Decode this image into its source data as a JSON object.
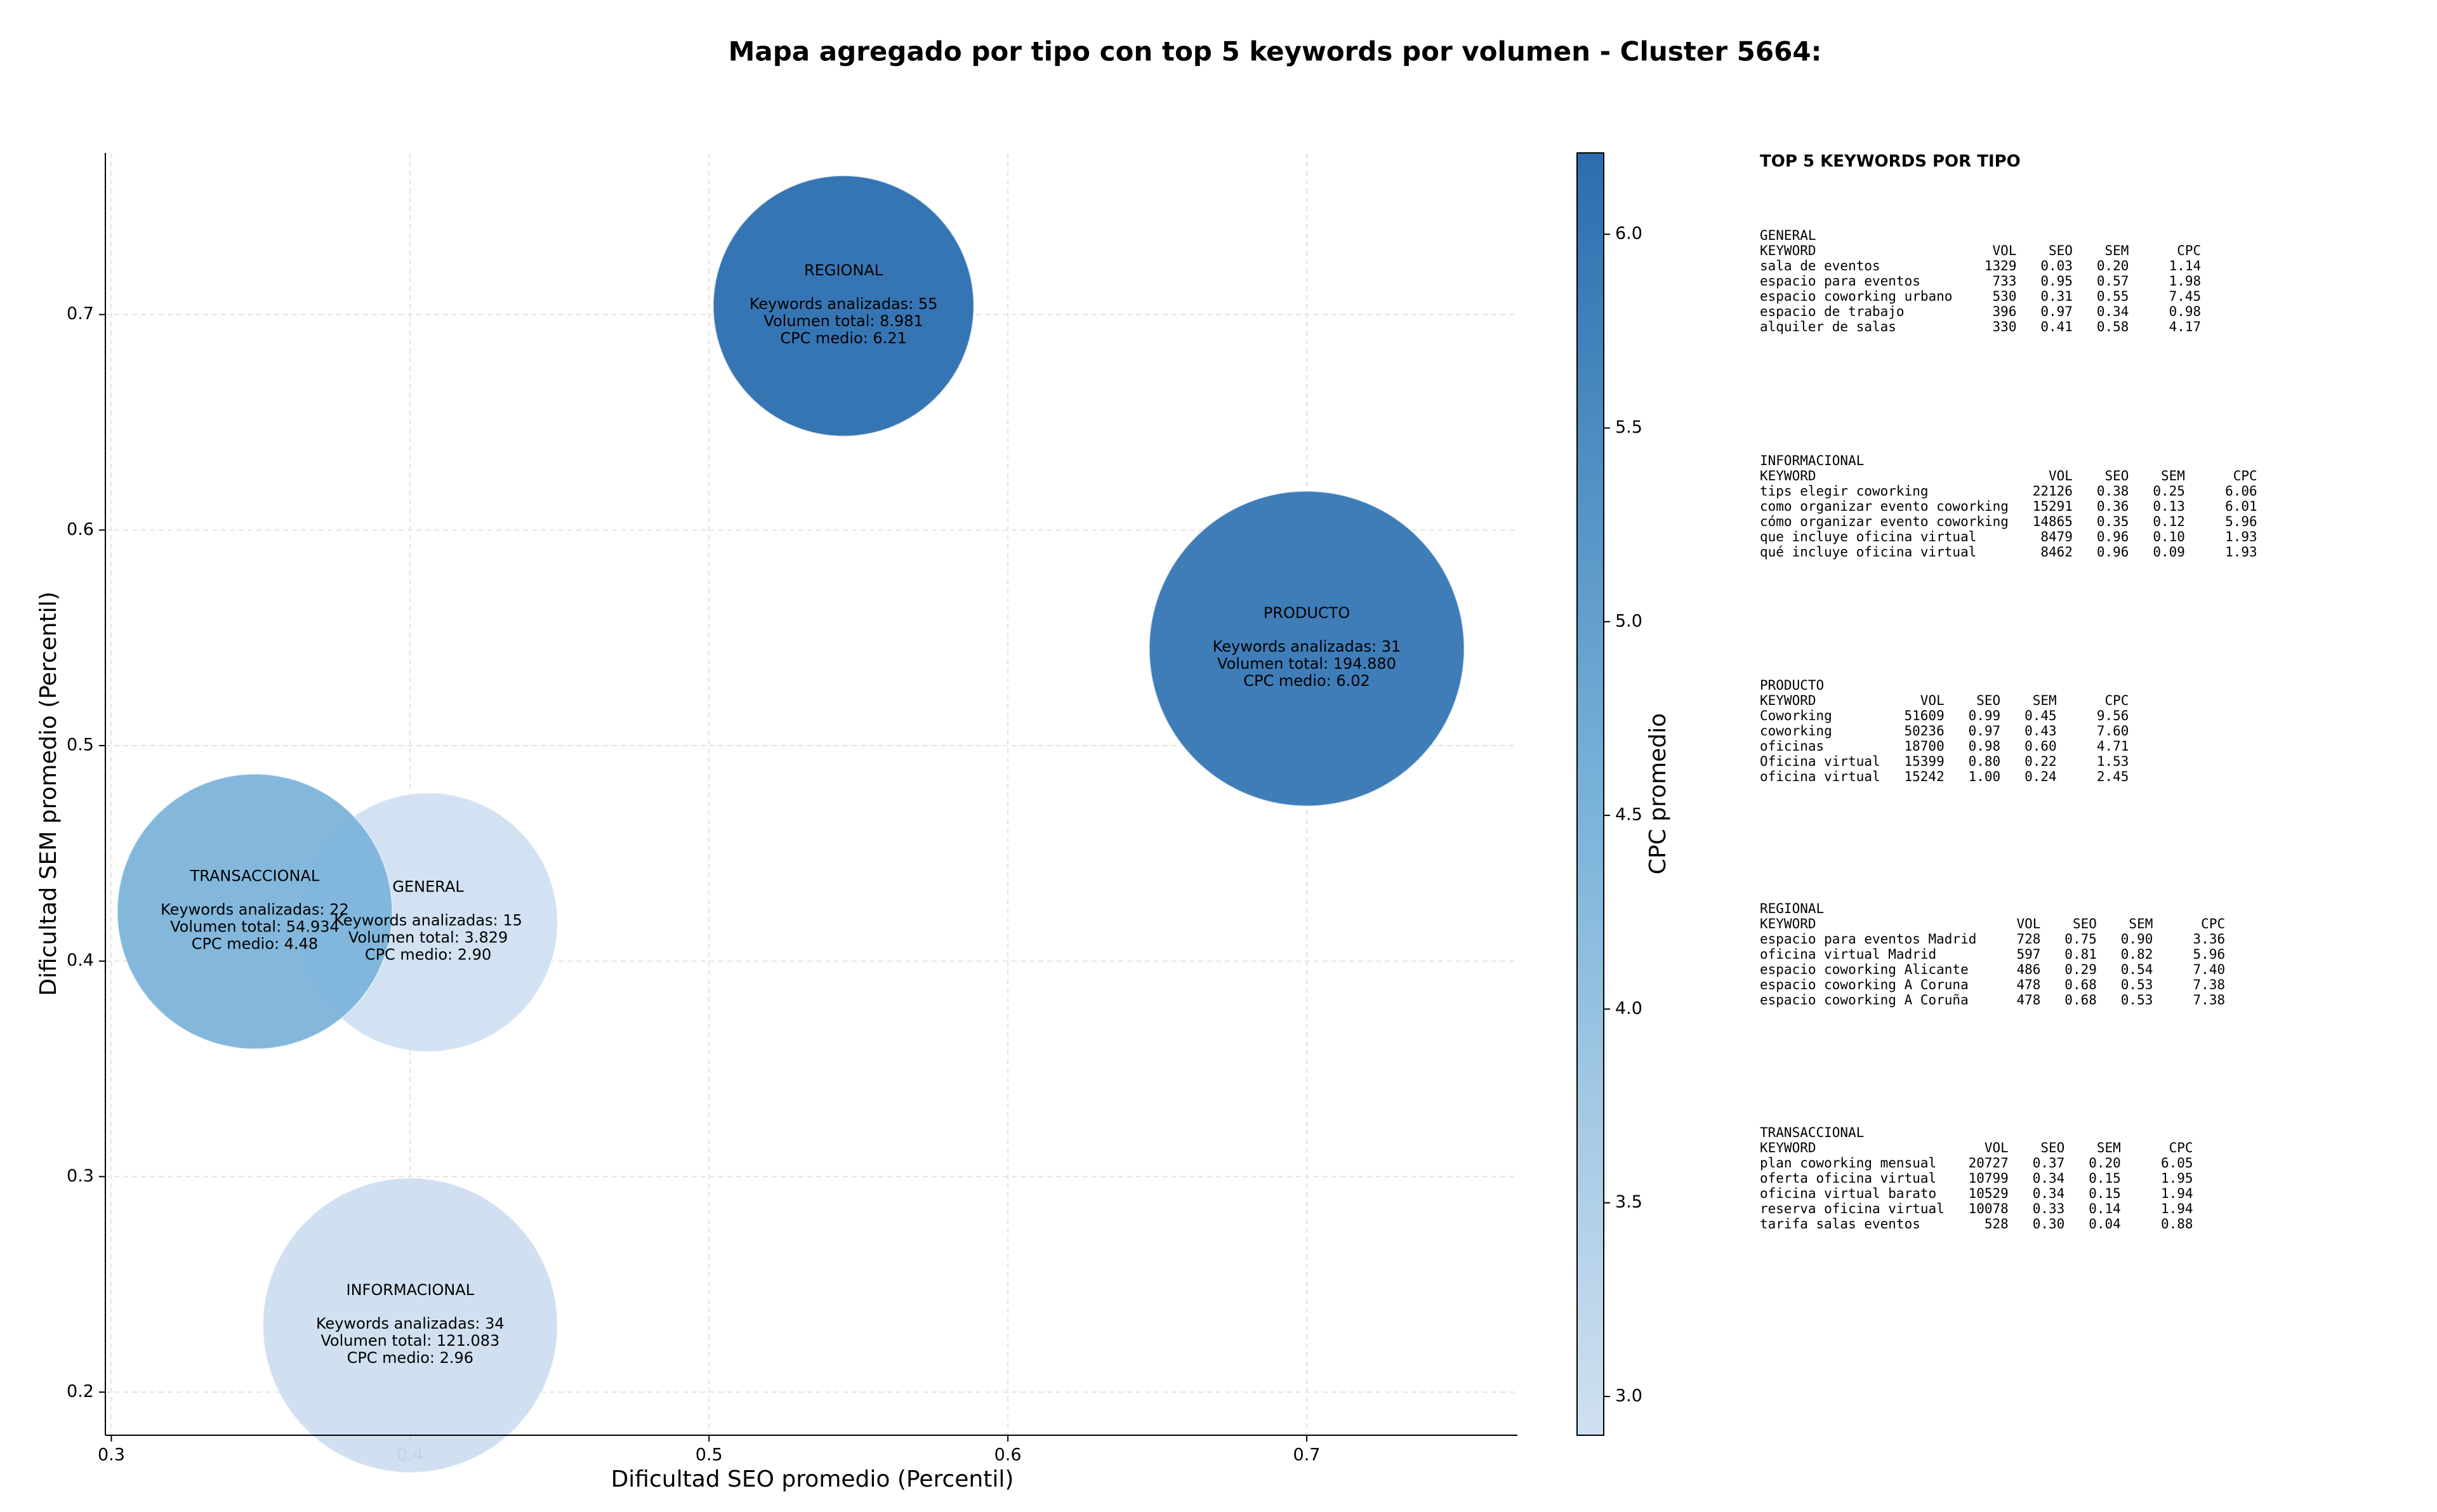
{
  "chart_data": {
    "type": "bubble",
    "title": "Mapa agregado por tipo con top 5 keywords por volumen - Cluster 5664:",
    "x_label": "Dificultad SEO promedio (Percentil)",
    "y_label": "Dificultad SEM promedio (Percentil)",
    "colorbar_label": "CPC promedio",
    "xlim": [
      0.298,
      0.7705
    ],
    "xticks": [
      0.3,
      0.4,
      0.5,
      0.6,
      0.7
    ],
    "ylim": [
      0.18,
      0.775
    ],
    "yticks": [
      0.2,
      0.3,
      0.4,
      0.5,
      0.6,
      0.7
    ],
    "clim": [
      2.9,
      6.21
    ],
    "cticks": [
      {
        "value": 3,
        "label": "3.0"
      },
      3.5,
      {
        "value": 4,
        "label": "4.0"
      },
      4.5,
      {
        "value": 5,
        "label": "5.0"
      },
      5.5,
      {
        "value": 6,
        "label": "6.0"
      }
    ],
    "colorscale": [
      "#d0e0f1",
      "#78b2d9",
      "#2b6eaf"
    ],
    "grid": true,
    "points": [
      {
        "name": "GENERAL",
        "x": 0.406,
        "y": 0.418,
        "size": 3829,
        "color_value": 2.9,
        "label_lines": [
          "Keywords analizadas: 15",
          "Volumen total: 3.829",
          "CPC medio: 2.90"
        ]
      },
      {
        "name": "INFORMACIONAL",
        "x": 0.4,
        "y": 0.231,
        "size": 121083,
        "color_value": 2.96,
        "label_lines": [
          "Keywords analizadas: 34",
          "Volumen total: 121.083",
          "CPC medio: 2.96"
        ]
      },
      {
        "name": "PRODUCTO",
        "x": 0.7,
        "y": 0.545,
        "size": 194880,
        "color_value": 6.02,
        "label_lines": [
          "Keywords analizadas: 31",
          "Volumen total: 194.880",
          "CPC medio: 6.02"
        ]
      },
      {
        "name": "REGIONAL",
        "x": 0.545,
        "y": 0.704,
        "size": 8981,
        "color_value": 6.21,
        "label_lines": [
          "Keywords analizadas: 55",
          "Volumen total: 8.981",
          "CPC medio: 6.21"
        ]
      },
      {
        "name": "TRANSACCIONAL",
        "x": 0.348,
        "y": 0.423,
        "size": 54934,
        "color_value": 4.48,
        "label_lines": [
          "Keywords analizadas: 22",
          "Volumen total: 54.934",
          "CPC medio: 4.48"
        ]
      }
    ]
  },
  "keyword_tables": {
    "title": "TOP 5 KEYWORDS POR TIPO",
    "columns": [
      "KEYWORD",
      "VOL",
      "SEO",
      "SEM",
      "CPC"
    ],
    "sections": [
      {
        "name": "GENERAL",
        "rows": [
          [
            "sala de eventos",
            "1329",
            "0.03",
            "0.20",
            "1.14"
          ],
          [
            "espacio para eventos",
            "733",
            "0.95",
            "0.57",
            "1.98"
          ],
          [
            "espacio coworking urbano",
            "530",
            "0.31",
            "0.55",
            "7.45"
          ],
          [
            "espacio de trabajo",
            "396",
            "0.97",
            "0.34",
            "0.98"
          ],
          [
            "alquiler de salas",
            "330",
            "0.41",
            "0.58",
            "4.17"
          ]
        ]
      },
      {
        "name": "INFORMACIONAL",
        "rows": [
          [
            "tips elegir coworking",
            "22126",
            "0.38",
            "0.25",
            "6.06"
          ],
          [
            "como organizar evento coworking",
            "15291",
            "0.36",
            "0.13",
            "6.01"
          ],
          [
            "cómo organizar evento coworking",
            "14865",
            "0.35",
            "0.12",
            "5.96"
          ],
          [
            "que incluye oficina virtual",
            "8479",
            "0.96",
            "0.10",
            "1.93"
          ],
          [
            "qué incluye oficina virtual",
            "8462",
            "0.96",
            "0.09",
            "1.93"
          ]
        ]
      },
      {
        "name": "PRODUCTO",
        "rows": [
          [
            "Coworking",
            "51609",
            "0.99",
            "0.45",
            "9.56"
          ],
          [
            "coworking",
            "50236",
            "0.97",
            "0.43",
            "7.60"
          ],
          [
            "oficinas",
            "18700",
            "0.98",
            "0.60",
            "4.71"
          ],
          [
            "Oficina virtual",
            "15399",
            "0.80",
            "0.22",
            "1.53"
          ],
          [
            "oficina virtual",
            "15242",
            "1.00",
            "0.24",
            "2.45"
          ]
        ]
      },
      {
        "name": "REGIONAL",
        "rows": [
          [
            "espacio para eventos Madrid",
            "728",
            "0.75",
            "0.90",
            "3.36"
          ],
          [
            "oficina virtual Madrid",
            "597",
            "0.81",
            "0.82",
            "5.96"
          ],
          [
            "espacio coworking Alicante",
            "486",
            "0.29",
            "0.54",
            "7.40"
          ],
          [
            "espacio coworking A Coruna",
            "478",
            "0.68",
            "0.53",
            "7.38"
          ],
          [
            "espacio coworking A Coruña",
            "478",
            "0.68",
            "0.53",
            "7.38"
          ]
        ]
      },
      {
        "name": "TRANSACCIONAL",
        "rows": [
          [
            "plan coworking mensual",
            "20727",
            "0.37",
            "0.20",
            "6.05"
          ],
          [
            "oferta oficina virtual",
            "10799",
            "0.34",
            "0.15",
            "1.95"
          ],
          [
            "oficina virtual barato",
            "10529",
            "0.34",
            "0.15",
            "1.94"
          ],
          [
            "reserva oficina virtual",
            "10078",
            "0.33",
            "0.14",
            "1.94"
          ],
          [
            "tarifa salas eventos",
            "528",
            "0.30",
            "0.04",
            "0.88"
          ]
        ]
      }
    ]
  }
}
